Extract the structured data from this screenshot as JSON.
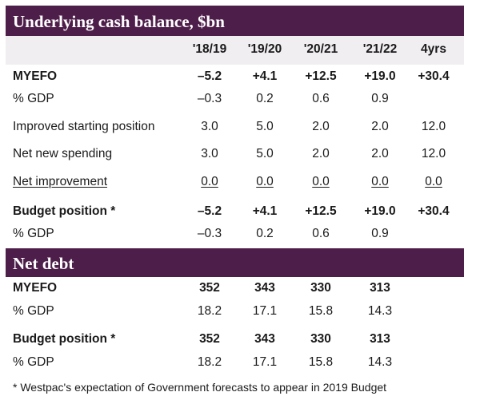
{
  "section1": {
    "title": "Underlying cash balance, $bn",
    "columns": [
      "'18/19",
      "'19/20",
      "'20/21",
      "'21/22",
      "4yrs"
    ],
    "rows": [
      {
        "label": "MYEFO",
        "bold": true,
        "values": [
          "–5.2",
          "+4.1",
          "+12.5",
          "+19.0",
          "+30.4"
        ]
      },
      {
        "label": "% GDP",
        "values": [
          "–0.3",
          "0.2",
          "0.6",
          "0.9",
          ""
        ]
      },
      {
        "label": "Improved starting position",
        "values": [
          "3.0",
          "5.0",
          "2.0",
          "2.0",
          "12.0"
        ]
      },
      {
        "label": "Net new spending",
        "values": [
          "3.0",
          "5.0",
          "2.0",
          "2.0",
          "12.0"
        ]
      },
      {
        "label": "Net improvement",
        "underline": true,
        "values": [
          "0.0",
          "0.0",
          "0.0",
          "0.0",
          "0.0"
        ]
      },
      {
        "label": "Budget position *",
        "bold": true,
        "values": [
          "–5.2",
          "+4.1",
          "+12.5",
          "+19.0",
          "+30.4"
        ]
      },
      {
        "label": "% GDP",
        "values": [
          "–0.3",
          "0.2",
          "0.6",
          "0.9",
          ""
        ]
      }
    ]
  },
  "section2": {
    "title": "Net debt",
    "rows": [
      {
        "label": "MYEFO",
        "bold": true,
        "values": [
          "352",
          "343",
          "330",
          "313",
          ""
        ]
      },
      {
        "label": "% GDP",
        "values": [
          "18.2",
          "17.1",
          "15.8",
          "14.3",
          ""
        ]
      },
      {
        "label": "Budget position *",
        "bold": true,
        "values": [
          "352",
          "343",
          "330",
          "313",
          ""
        ]
      },
      {
        "label": "% GDP",
        "values": [
          "18.2",
          "17.1",
          "15.8",
          "14.3",
          ""
        ]
      }
    ]
  },
  "footnote": "* Westpac's expectation of Government forecasts to appear in 2019 Budget",
  "colors": {
    "header_band": "#4e1e4a",
    "column_header_bg": "#f1eef1"
  }
}
